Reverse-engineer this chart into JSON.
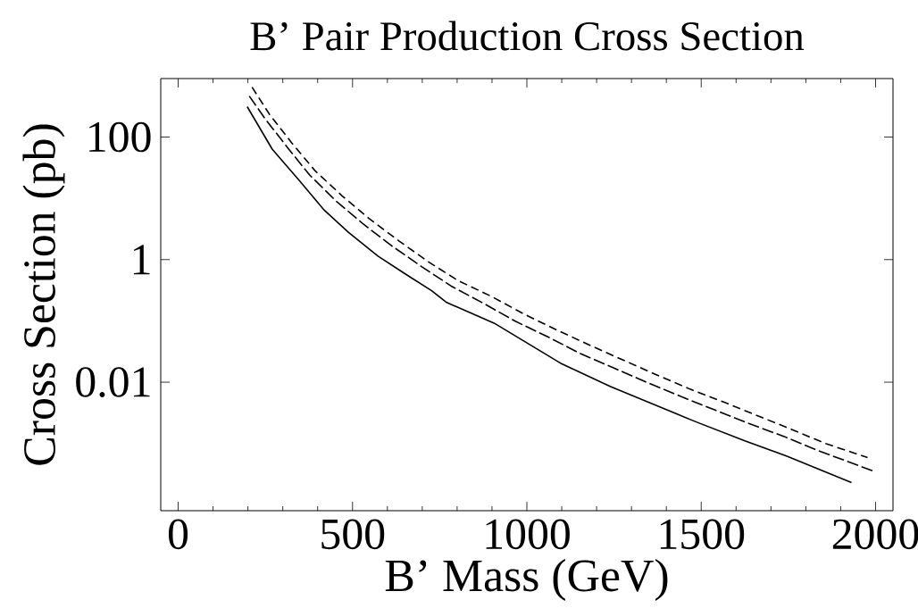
{
  "chart_data": {
    "type": "line",
    "title": "B’ Pair Production Cross Section",
    "xlabel": "B’ Mass (GeV)",
    "ylabel": "Cross Section (pb)",
    "log": true,
    "xlim": [
      -50,
      2050
    ],
    "ylim": [
      8e-05,
      900
    ],
    "xticks": [
      0,
      500,
      1000,
      1500,
      2000
    ],
    "yticks": [
      100,
      1,
      0.01
    ],
    "grid": false,
    "series": [
      {
        "color": "#000000",
        "line_style": "solid",
        "x": [
          198,
          270,
          347,
          419,
          488,
          573,
          650,
          727,
          770,
          906,
          1096,
          1240,
          1481,
          1625,
          1746,
          1931
        ],
        "values": [
          313,
          63,
          19.6,
          6.4,
          2.8,
          1.14,
          0.59,
          0.31,
          0.2,
          0.092,
          0.0205,
          0.0085,
          0.0023,
          0.0011,
          0.00062,
          0.00023
        ]
      },
      {
        "color": "#000000",
        "line_style": "dashed",
        "x": [
          198,
          249,
          313,
          377,
          454,
          531,
          611,
          698,
          783,
          878,
          968,
          1060,
          1155,
          1250,
          1348,
          1443,
          1540,
          1638,
          1738,
          1831,
          1997
        ],
        "values": [
          520,
          200,
          68,
          24,
          8.9,
          3.8,
          1.7,
          0.77,
          0.37,
          0.19,
          0.098,
          0.055,
          0.029,
          0.017,
          0.0097,
          0.0058,
          0.0035,
          0.0021,
          0.0013,
          0.00078,
          0.00035
        ]
      },
      {
        "color": "#000000",
        "line_style": "dashed",
        "x": [
          205,
          262,
          326,
          393,
          470,
          547,
          634,
          719,
          804,
          899,
          993,
          1086,
          1181,
          1276,
          1374,
          1468,
          1566,
          1664,
          1759,
          1856,
          1977
        ],
        "values": [
          750,
          234,
          80,
          28,
          11,
          4.7,
          2.0,
          0.91,
          0.45,
          0.25,
          0.128,
          0.071,
          0.04,
          0.023,
          0.013,
          0.0077,
          0.0047,
          0.0028,
          0.0017,
          0.001,
          0.00059
        ]
      }
    ]
  }
}
